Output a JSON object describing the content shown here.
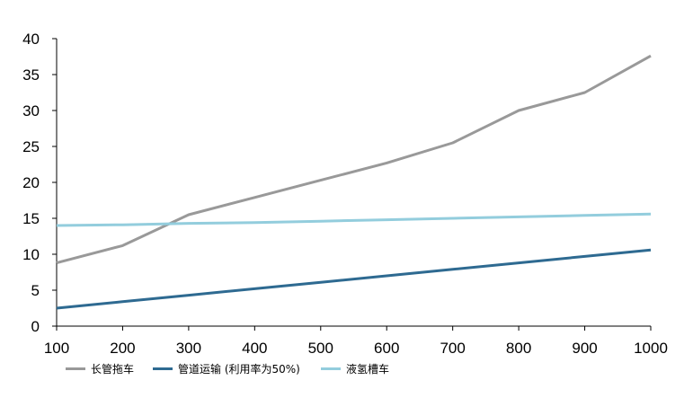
{
  "chart_data": {
    "type": "line",
    "x": [
      100,
      200,
      300,
      400,
      500,
      600,
      700,
      800,
      900,
      1000
    ],
    "x_ticks": [
      "100",
      "200",
      "300",
      "400",
      "500",
      "600",
      "700",
      "800",
      "900",
      "1000"
    ],
    "y_ticks": [
      "0",
      "5",
      "10",
      "15",
      "20",
      "25",
      "30",
      "35",
      "40"
    ],
    "ylim": [
      0,
      40
    ],
    "xlim": [
      100,
      1000
    ],
    "grid": false,
    "legend_position": "bottom-left",
    "series": [
      {
        "name": "长管拖车",
        "color": "#999999",
        "values": [
          8.8,
          11.2,
          15.5,
          17.9,
          20.3,
          22.7,
          25.5,
          30.0,
          32.5,
          37.6
        ]
      },
      {
        "name": "管道运输 (利用率为50%)",
        "color": "#2e6a91",
        "values": [
          2.5,
          3.4,
          4.3,
          5.2,
          6.1,
          7.0,
          7.9,
          8.8,
          9.7,
          10.6
        ]
      },
      {
        "name": "液氢槽车",
        "color": "#93cddd",
        "values": [
          14.0,
          14.1,
          14.3,
          14.4,
          14.6,
          14.8,
          15.0,
          15.2,
          15.4,
          15.6
        ]
      }
    ]
  }
}
